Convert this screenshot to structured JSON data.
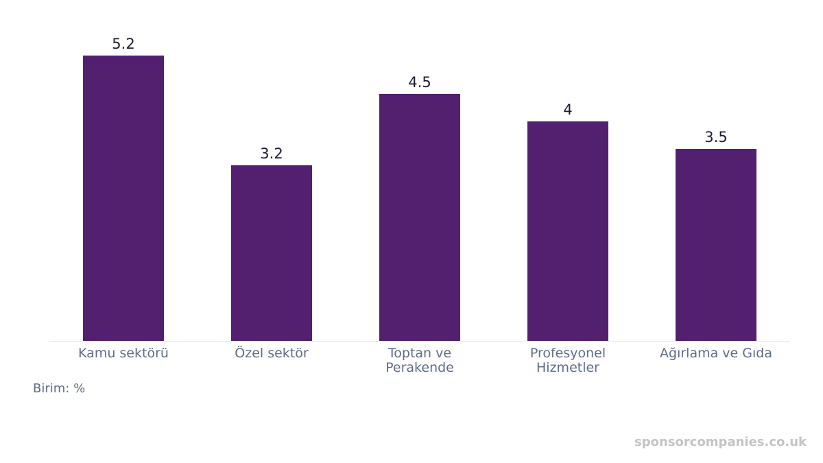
{
  "chart_data": {
    "type": "bar",
    "categories": [
      [
        "Kamu sektörü"
      ],
      [
        "Özel sektör"
      ],
      [
        "Toptan ve",
        "Perakende"
      ],
      [
        "Profesyonel",
        "Hizmetler"
      ],
      [
        "Ağırlama ve Gıda"
      ]
    ],
    "values": [
      5.2,
      3.2,
      4.5,
      4,
      3.5
    ],
    "value_labels": [
      "5.2",
      "3.2",
      "4.5",
      "4",
      "3.5"
    ],
    "ylim": [
      0,
      5.2
    ],
    "title": "",
    "xlabel": "",
    "ylabel": "",
    "grid": false,
    "bar_color": "#52206f",
    "axis_color": "#e6e6ee"
  },
  "unit_note": "Birim: %",
  "watermark": "sponsorcompanies.co.uk"
}
